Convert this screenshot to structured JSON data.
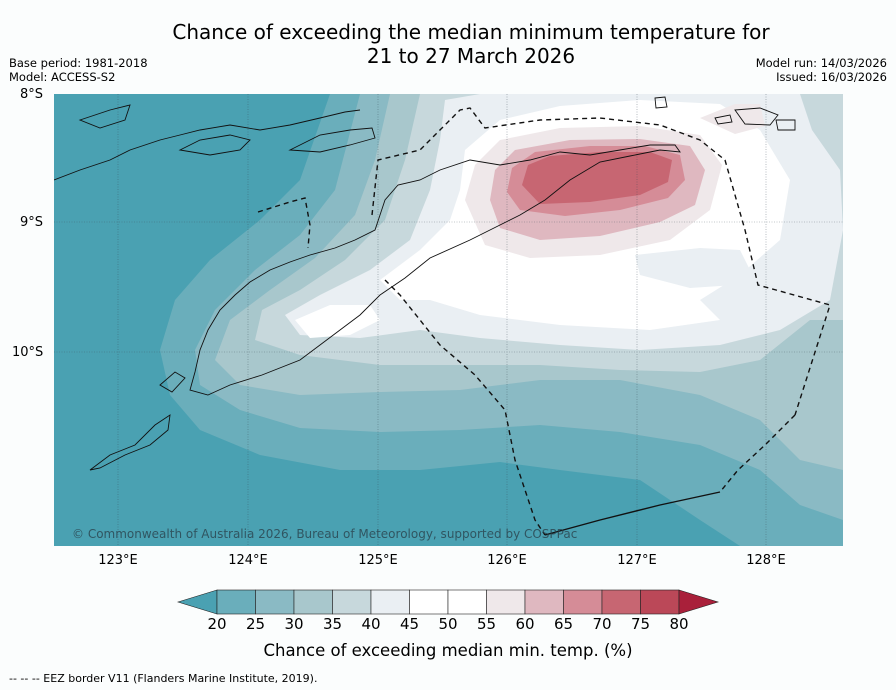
{
  "title_line1": "Chance of exceeding the median minimum temperature for",
  "title_line2": "21 to 27 March 2026",
  "meta": {
    "base_period": "Base period: 1981-2018",
    "model": "Model: ACCESS-S2",
    "model_run": "Model run: 14/03/2026",
    "issued": "Issued: 16/03/2026"
  },
  "map": {
    "lat_labels": [
      "8°S",
      "9°S",
      "10°S"
    ],
    "lon_labels": [
      "123°E",
      "124°E",
      "125°E",
      "126°E",
      "127°E",
      "128°E"
    ],
    "copyright": "© Commonwealth of Australia 2026, Bureau of Meteorology, supported by COSPPac"
  },
  "colorbar": {
    "ticks": [
      "20",
      "25",
      "30",
      "35",
      "40",
      "45",
      "50",
      "55",
      "60",
      "65",
      "70",
      "75",
      "80"
    ],
    "colors": {
      "below_20": "#4aa1b2",
      "b20_25": "#6aaebb",
      "b25_30": "#8abac4",
      "b30_35": "#a8c7cc",
      "b35_40": "#c7d8dc",
      "b40_45": "#eaeff3",
      "b45_50": "#ffffff",
      "b50_55": "#ffffff",
      "b55_60": "#efe8ea",
      "b60_65": "#dfb8c0",
      "b65_70": "#d58c97",
      "b70_75": "#c76672",
      "b75_80": "#bb4858",
      "above_80": "#a9203a"
    },
    "label": "Chance of exceeding median min. temp. (%)"
  },
  "legend_footer": "-- -- -- EEZ border V11 (Flanders Marine Institute, 2019)."
}
